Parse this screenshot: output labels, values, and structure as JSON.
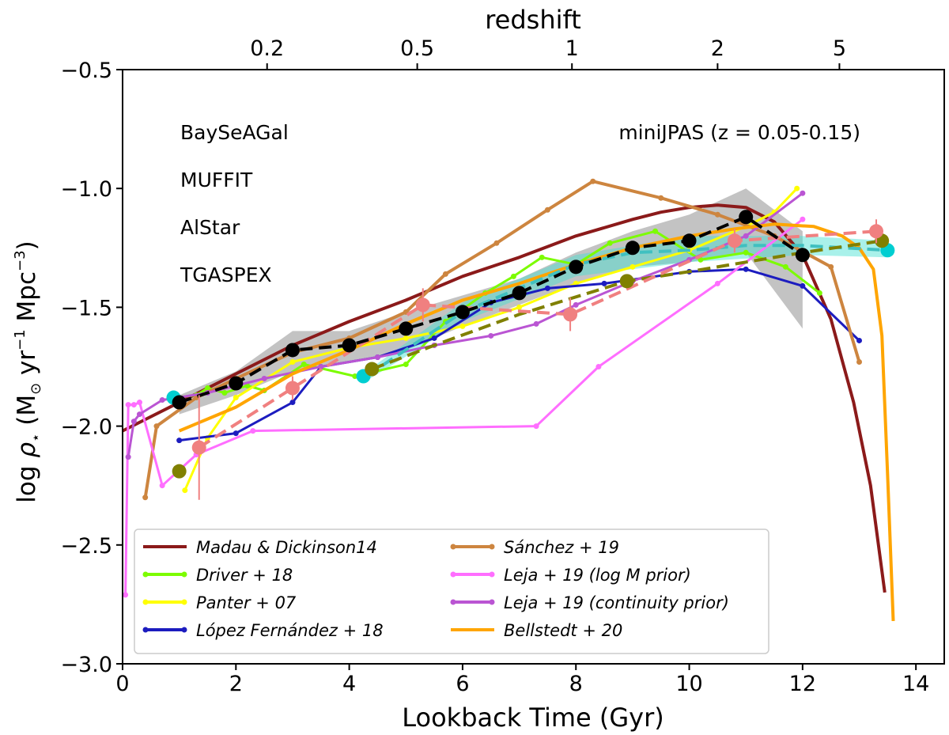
{
  "chart_data": {
    "type": "line",
    "xlabel": "Lookback Time (Gyr)",
    "ylabel_parts": {
      "pre": "log ",
      "rho": "ρ",
      "star": "⋆",
      "paren_open": " (M",
      "sun": "⊙",
      "yr": " yr",
      "yr_exp": "−1",
      "mpc": " Mpc",
      "mpc_exp": "−3",
      "paren_close": ")"
    },
    "top_xlabel": "redshift",
    "xlim": [
      0,
      14.5
    ],
    "ylim": [
      -3.0,
      -0.5
    ],
    "xticks": [
      0,
      2,
      4,
      6,
      8,
      10,
      12,
      14
    ],
    "yticks": [
      -3.0,
      -2.5,
      -2.0,
      -1.5,
      -1.0,
      -0.5
    ],
    "yticklabels": [
      "−3.0",
      "−2.5",
      "−2.0",
      "−1.5",
      "−1.0",
      "−0.5"
    ],
    "top_ticks": [
      {
        "label": "0.2",
        "t": 2.55
      },
      {
        "label": "0.5",
        "t": 5.2
      },
      {
        "label": "1",
        "t": 7.93
      },
      {
        "label": "2",
        "t": 10.5
      },
      {
        "label": "5",
        "t": 12.65
      }
    ],
    "annotations": [
      {
        "text": "BaySeAGal",
        "color": "#000000"
      },
      {
        "text": "MUFFIT",
        "color": "#f08080"
      },
      {
        "text": "AlStar",
        "color": "#00e5ee"
      },
      {
        "text": "TGASPEX",
        "color": "#808000"
      },
      {
        "text": "miniJPAS (z = 0.05-0.15)",
        "color": "#000000"
      }
    ],
    "legend": {
      "position": "lower-left",
      "entries": [
        {
          "name": "Madau & Dickinson14",
          "color": "#8b1a1a"
        },
        {
          "name": "Driver + 18",
          "color": "#7cfc00"
        },
        {
          "name": "Panter + 07",
          "color": "#ffff00"
        },
        {
          "name": "López Fernández + 18",
          "color": "#1c1cbf"
        },
        {
          "name": "Sánchez + 19",
          "color": "#cd853f"
        },
        {
          "name": "Leja + 19 (log M prior)",
          "color": "#ff6eff"
        },
        {
          "name": "Leja + 19 (continuity prior)",
          "color": "#ba55d3"
        },
        {
          "name": "Bellstedt + 20",
          "color": "#ffa500"
        }
      ]
    },
    "band": {
      "name": "BaySeAGal spread",
      "color": "#a9a9a9",
      "upper": [
        [
          1.0,
          -1.87
        ],
        [
          2.0,
          -1.77
        ],
        [
          3.0,
          -1.6
        ],
        [
          4.0,
          -1.6
        ],
        [
          5.0,
          -1.52
        ],
        [
          6.0,
          -1.45
        ],
        [
          7.0,
          -1.38
        ],
        [
          8.0,
          -1.27
        ],
        [
          9.0,
          -1.18
        ],
        [
          10.0,
          -1.11
        ],
        [
          11.0,
          -1.0
        ],
        [
          12.0,
          -1.18
        ]
      ],
      "lower": [
        [
          12.0,
          -1.59
        ],
        [
          11.0,
          -1.27
        ],
        [
          10.0,
          -1.31
        ],
        [
          9.0,
          -1.33
        ],
        [
          8.0,
          -1.4
        ],
        [
          7.0,
          -1.49
        ],
        [
          6.0,
          -1.58
        ],
        [
          5.0,
          -1.68
        ],
        [
          4.0,
          -1.73
        ],
        [
          3.0,
          -1.77
        ],
        [
          2.0,
          -1.87
        ],
        [
          1.0,
          -1.95
        ]
      ]
    },
    "aistar_band": {
      "color": "#40e0d0",
      "upper": [
        [
          4.3,
          -1.77
        ],
        [
          6.0,
          -1.48
        ],
        [
          8.0,
          -1.28
        ],
        [
          10.0,
          -1.2
        ],
        [
          12.0,
          -1.2
        ],
        [
          13.5,
          -1.22
        ]
      ],
      "lower": [
        [
          13.5,
          -1.29
        ],
        [
          12.0,
          -1.28
        ],
        [
          10.0,
          -1.31
        ],
        [
          8.0,
          -1.37
        ],
        [
          6.0,
          -1.56
        ],
        [
          4.3,
          -1.81
        ]
      ]
    },
    "series": [
      {
        "name": "Madau & Dickinson14",
        "color": "#8b1a1a",
        "width": 4,
        "markers": false,
        "points": [
          [
            0,
            -2.02
          ],
          [
            1,
            -1.9
          ],
          [
            2,
            -1.78
          ],
          [
            3,
            -1.66
          ],
          [
            4,
            -1.56
          ],
          [
            5,
            -1.47
          ],
          [
            6,
            -1.37
          ],
          [
            7,
            -1.29
          ],
          [
            8,
            -1.2
          ],
          [
            9,
            -1.13
          ],
          [
            9.5,
            -1.1
          ],
          [
            10,
            -1.08
          ],
          [
            10.5,
            -1.07
          ],
          [
            11,
            -1.08
          ],
          [
            11.5,
            -1.14
          ],
          [
            12,
            -1.28
          ],
          [
            12.5,
            -1.55
          ],
          [
            12.9,
            -1.9
          ],
          [
            13.2,
            -2.25
          ],
          [
            13.45,
            -2.7
          ]
        ]
      },
      {
        "name": "Driver + 18",
        "color": "#7cfc00",
        "width": 3,
        "markers": true,
        "points": [
          [
            0.9,
            -1.88
          ],
          [
            1.3,
            -1.87
          ],
          [
            1.5,
            -1.84
          ],
          [
            1.8,
            -1.86
          ],
          [
            2.2,
            -1.83
          ],
          [
            2.5,
            -1.85
          ],
          [
            3.2,
            -1.74
          ],
          [
            4.1,
            -1.79
          ],
          [
            5.0,
            -1.74
          ],
          [
            5.7,
            -1.56
          ],
          [
            6.4,
            -1.44
          ],
          [
            6.9,
            -1.37
          ],
          [
            7.4,
            -1.29
          ],
          [
            8.0,
            -1.32
          ],
          [
            8.6,
            -1.23
          ],
          [
            9.4,
            -1.18
          ],
          [
            10.2,
            -1.3
          ],
          [
            11.0,
            -1.27
          ],
          [
            11.7,
            -1.33
          ],
          [
            12.3,
            -1.44
          ]
        ]
      },
      {
        "name": "Panter + 07",
        "color": "#ffff00",
        "width": 3,
        "markers": true,
        "points": [
          [
            1.1,
            -2.27
          ],
          [
            1.5,
            -2.05
          ],
          [
            2.0,
            -1.88
          ],
          [
            3.0,
            -1.73
          ],
          [
            4.0,
            -1.67
          ],
          [
            5.0,
            -1.63
          ],
          [
            6.0,
            -1.58
          ],
          [
            7.0,
            -1.5
          ],
          [
            8.0,
            -1.4
          ],
          [
            9.0,
            -1.33
          ],
          [
            10.0,
            -1.26
          ],
          [
            11.0,
            -1.16
          ],
          [
            11.5,
            -1.1
          ],
          [
            11.9,
            -1.0
          ]
        ]
      },
      {
        "name": "López Fernández + 18",
        "color": "#1c1cbf",
        "width": 3,
        "markers": true,
        "points": [
          [
            1.0,
            -2.06
          ],
          [
            2.0,
            -2.03
          ],
          [
            3.0,
            -1.9
          ],
          [
            3.5,
            -1.75
          ],
          [
            4.5,
            -1.71
          ],
          [
            5.5,
            -1.63
          ],
          [
            6.5,
            -1.48
          ],
          [
            7.5,
            -1.42
          ],
          [
            8.5,
            -1.4
          ],
          [
            10.0,
            -1.35
          ],
          [
            11.0,
            -1.34
          ],
          [
            12.0,
            -1.41
          ],
          [
            13.0,
            -1.64
          ]
        ]
      },
      {
        "name": "Sánchez + 19",
        "color": "#cd853f",
        "width": 4,
        "markers": true,
        "points": [
          [
            0.4,
            -2.3
          ],
          [
            0.6,
            -2.0
          ],
          [
            1.3,
            -1.88
          ],
          [
            2.0,
            -1.8
          ],
          [
            3.0,
            -1.69
          ],
          [
            4.0,
            -1.63
          ],
          [
            5.0,
            -1.52
          ],
          [
            5.7,
            -1.36
          ],
          [
            6.6,
            -1.23
          ],
          [
            7.5,
            -1.09
          ],
          [
            8.3,
            -0.97
          ],
          [
            9.5,
            -1.04
          ],
          [
            10.5,
            -1.11
          ],
          [
            11.5,
            -1.2
          ],
          [
            12.5,
            -1.33
          ],
          [
            13.0,
            -1.73
          ]
        ]
      },
      {
        "name": "Leja + 19 (log M prior)",
        "color": "#ff6eff",
        "width": 3,
        "markers": true,
        "points": [
          [
            0.05,
            -2.71
          ],
          [
            0.1,
            -1.91
          ],
          [
            0.2,
            -1.91
          ],
          [
            0.3,
            -1.9
          ],
          [
            0.7,
            -2.25
          ],
          [
            1.3,
            -2.12
          ],
          [
            2.3,
            -2.02
          ],
          [
            7.3,
            -2.0
          ],
          [
            8.4,
            -1.75
          ],
          [
            10.5,
            -1.4
          ],
          [
            12.0,
            -1.13
          ]
        ]
      },
      {
        "name": "Leja + 19 (continuity prior)",
        "color": "#ba55d3",
        "width": 3,
        "markers": true,
        "points": [
          [
            0.1,
            -2.13
          ],
          [
            0.2,
            -1.98
          ],
          [
            0.3,
            -1.95
          ],
          [
            0.7,
            -1.89
          ],
          [
            1.5,
            -1.86
          ],
          [
            2.5,
            -1.8
          ],
          [
            3.5,
            -1.75
          ],
          [
            4.5,
            -1.71
          ],
          [
            5.5,
            -1.66
          ],
          [
            6.5,
            -1.62
          ],
          [
            7.3,
            -1.57
          ],
          [
            8.0,
            -1.49
          ],
          [
            9.0,
            -1.39
          ],
          [
            10.0,
            -1.3
          ],
          [
            11.0,
            -1.2
          ],
          [
            12.0,
            -1.02
          ]
        ]
      },
      {
        "name": "Bellstedt + 20",
        "color": "#ffa500",
        "width": 4,
        "markers": false,
        "points": [
          [
            1.0,
            -2.02
          ],
          [
            2.0,
            -1.92
          ],
          [
            3.0,
            -1.78
          ],
          [
            4.0,
            -1.68
          ],
          [
            5.0,
            -1.57
          ],
          [
            6.0,
            -1.47
          ],
          [
            7.0,
            -1.4
          ],
          [
            8.0,
            -1.32
          ],
          [
            9.0,
            -1.25
          ],
          [
            10.0,
            -1.2
          ],
          [
            10.8,
            -1.17
          ],
          [
            11.5,
            -1.15
          ],
          [
            12.2,
            -1.16
          ],
          [
            12.7,
            -1.2
          ],
          [
            13.0,
            -1.25
          ],
          [
            13.25,
            -1.34
          ],
          [
            13.4,
            -1.62
          ],
          [
            13.5,
            -2.2
          ],
          [
            13.6,
            -2.82
          ]
        ]
      },
      {
        "name": "AlStar",
        "color": "#40c0c0",
        "width": 4,
        "dash": "16,8",
        "markers": false,
        "points": [
          [
            4.3,
            -1.79
          ],
          [
            6.0,
            -1.52
          ],
          [
            8.0,
            -1.32
          ],
          [
            9.0,
            -1.27
          ],
          [
            10.0,
            -1.26
          ],
          [
            11.0,
            -1.24
          ],
          [
            12.0,
            -1.24
          ],
          [
            13.5,
            -1.26
          ]
        ]
      },
      {
        "name": "TGASPEX",
        "color": "#808000",
        "width": 4,
        "dash": "16,8",
        "markers": false,
        "points": [
          [
            4.4,
            -1.76
          ],
          [
            5.5,
            -1.66
          ],
          [
            7.0,
            -1.53
          ],
          [
            8.9,
            -1.39
          ],
          [
            10.0,
            -1.35
          ],
          [
            11.0,
            -1.31
          ],
          [
            12.0,
            -1.27
          ],
          [
            13.4,
            -1.22
          ]
        ]
      },
      {
        "name": "MUFFIT",
        "color": "#f08080",
        "width": 4,
        "dash": "16,8",
        "markers": false,
        "points": [
          [
            1.35,
            -2.09
          ],
          [
            3.0,
            -1.84
          ],
          [
            5.3,
            -1.49
          ],
          [
            7.9,
            -1.53
          ],
          [
            10.8,
            -1.22
          ],
          [
            13.3,
            -1.18
          ]
        ]
      },
      {
        "name": "BaySeAGal",
        "color": "#000000",
        "width": 4,
        "dash": "16,8",
        "markers": false,
        "points": [
          [
            1.0,
            -1.9
          ],
          [
            2.0,
            -1.82
          ],
          [
            3.0,
            -1.68
          ],
          [
            4.0,
            -1.66
          ],
          [
            5.0,
            -1.59
          ],
          [
            6.0,
            -1.52
          ],
          [
            7.0,
            -1.44
          ],
          [
            8.0,
            -1.33
          ],
          [
            9.0,
            -1.25
          ],
          [
            10.0,
            -1.22
          ],
          [
            11.0,
            -1.12
          ],
          [
            12.0,
            -1.28
          ]
        ]
      }
    ],
    "dots": [
      {
        "name": "AlStar",
        "color": "#00ced1",
        "r": 9,
        "points": [
          [
            0.9,
            -1.88
          ],
          [
            4.25,
            -1.79
          ],
          [
            13.5,
            -1.26
          ]
        ]
      },
      {
        "name": "TGASPEX",
        "color": "#808000",
        "r": 9,
        "points": [
          [
            1.0,
            -2.19
          ],
          [
            4.4,
            -1.76
          ],
          [
            8.9,
            -1.39
          ],
          [
            13.4,
            -1.22
          ]
        ]
      },
      {
        "name": "MUFFIT",
        "color": "#f08080",
        "r": 9,
        "points": [
          [
            1.35,
            -2.09
          ],
          [
            3.0,
            -1.84
          ],
          [
            5.3,
            -1.49
          ],
          [
            7.9,
            -1.53
          ],
          [
            10.8,
            -1.22
          ],
          [
            13.3,
            -1.18
          ]
        ],
        "err": [
          0.22,
          0.05,
          0.07,
          0.07,
          0.05,
          0.05
        ]
      },
      {
        "name": "BaySeAGal",
        "color": "#000000",
        "r": 9,
        "points": [
          [
            1.0,
            -1.9
          ],
          [
            2.0,
            -1.82
          ],
          [
            3.0,
            -1.68
          ],
          [
            4.0,
            -1.66
          ],
          [
            5.0,
            -1.59
          ],
          [
            6.0,
            -1.52
          ],
          [
            7.0,
            -1.44
          ],
          [
            8.0,
            -1.33
          ],
          [
            9.0,
            -1.25
          ],
          [
            10.0,
            -1.22
          ],
          [
            11.0,
            -1.12
          ],
          [
            12.0,
            -1.28
          ]
        ]
      }
    ]
  }
}
